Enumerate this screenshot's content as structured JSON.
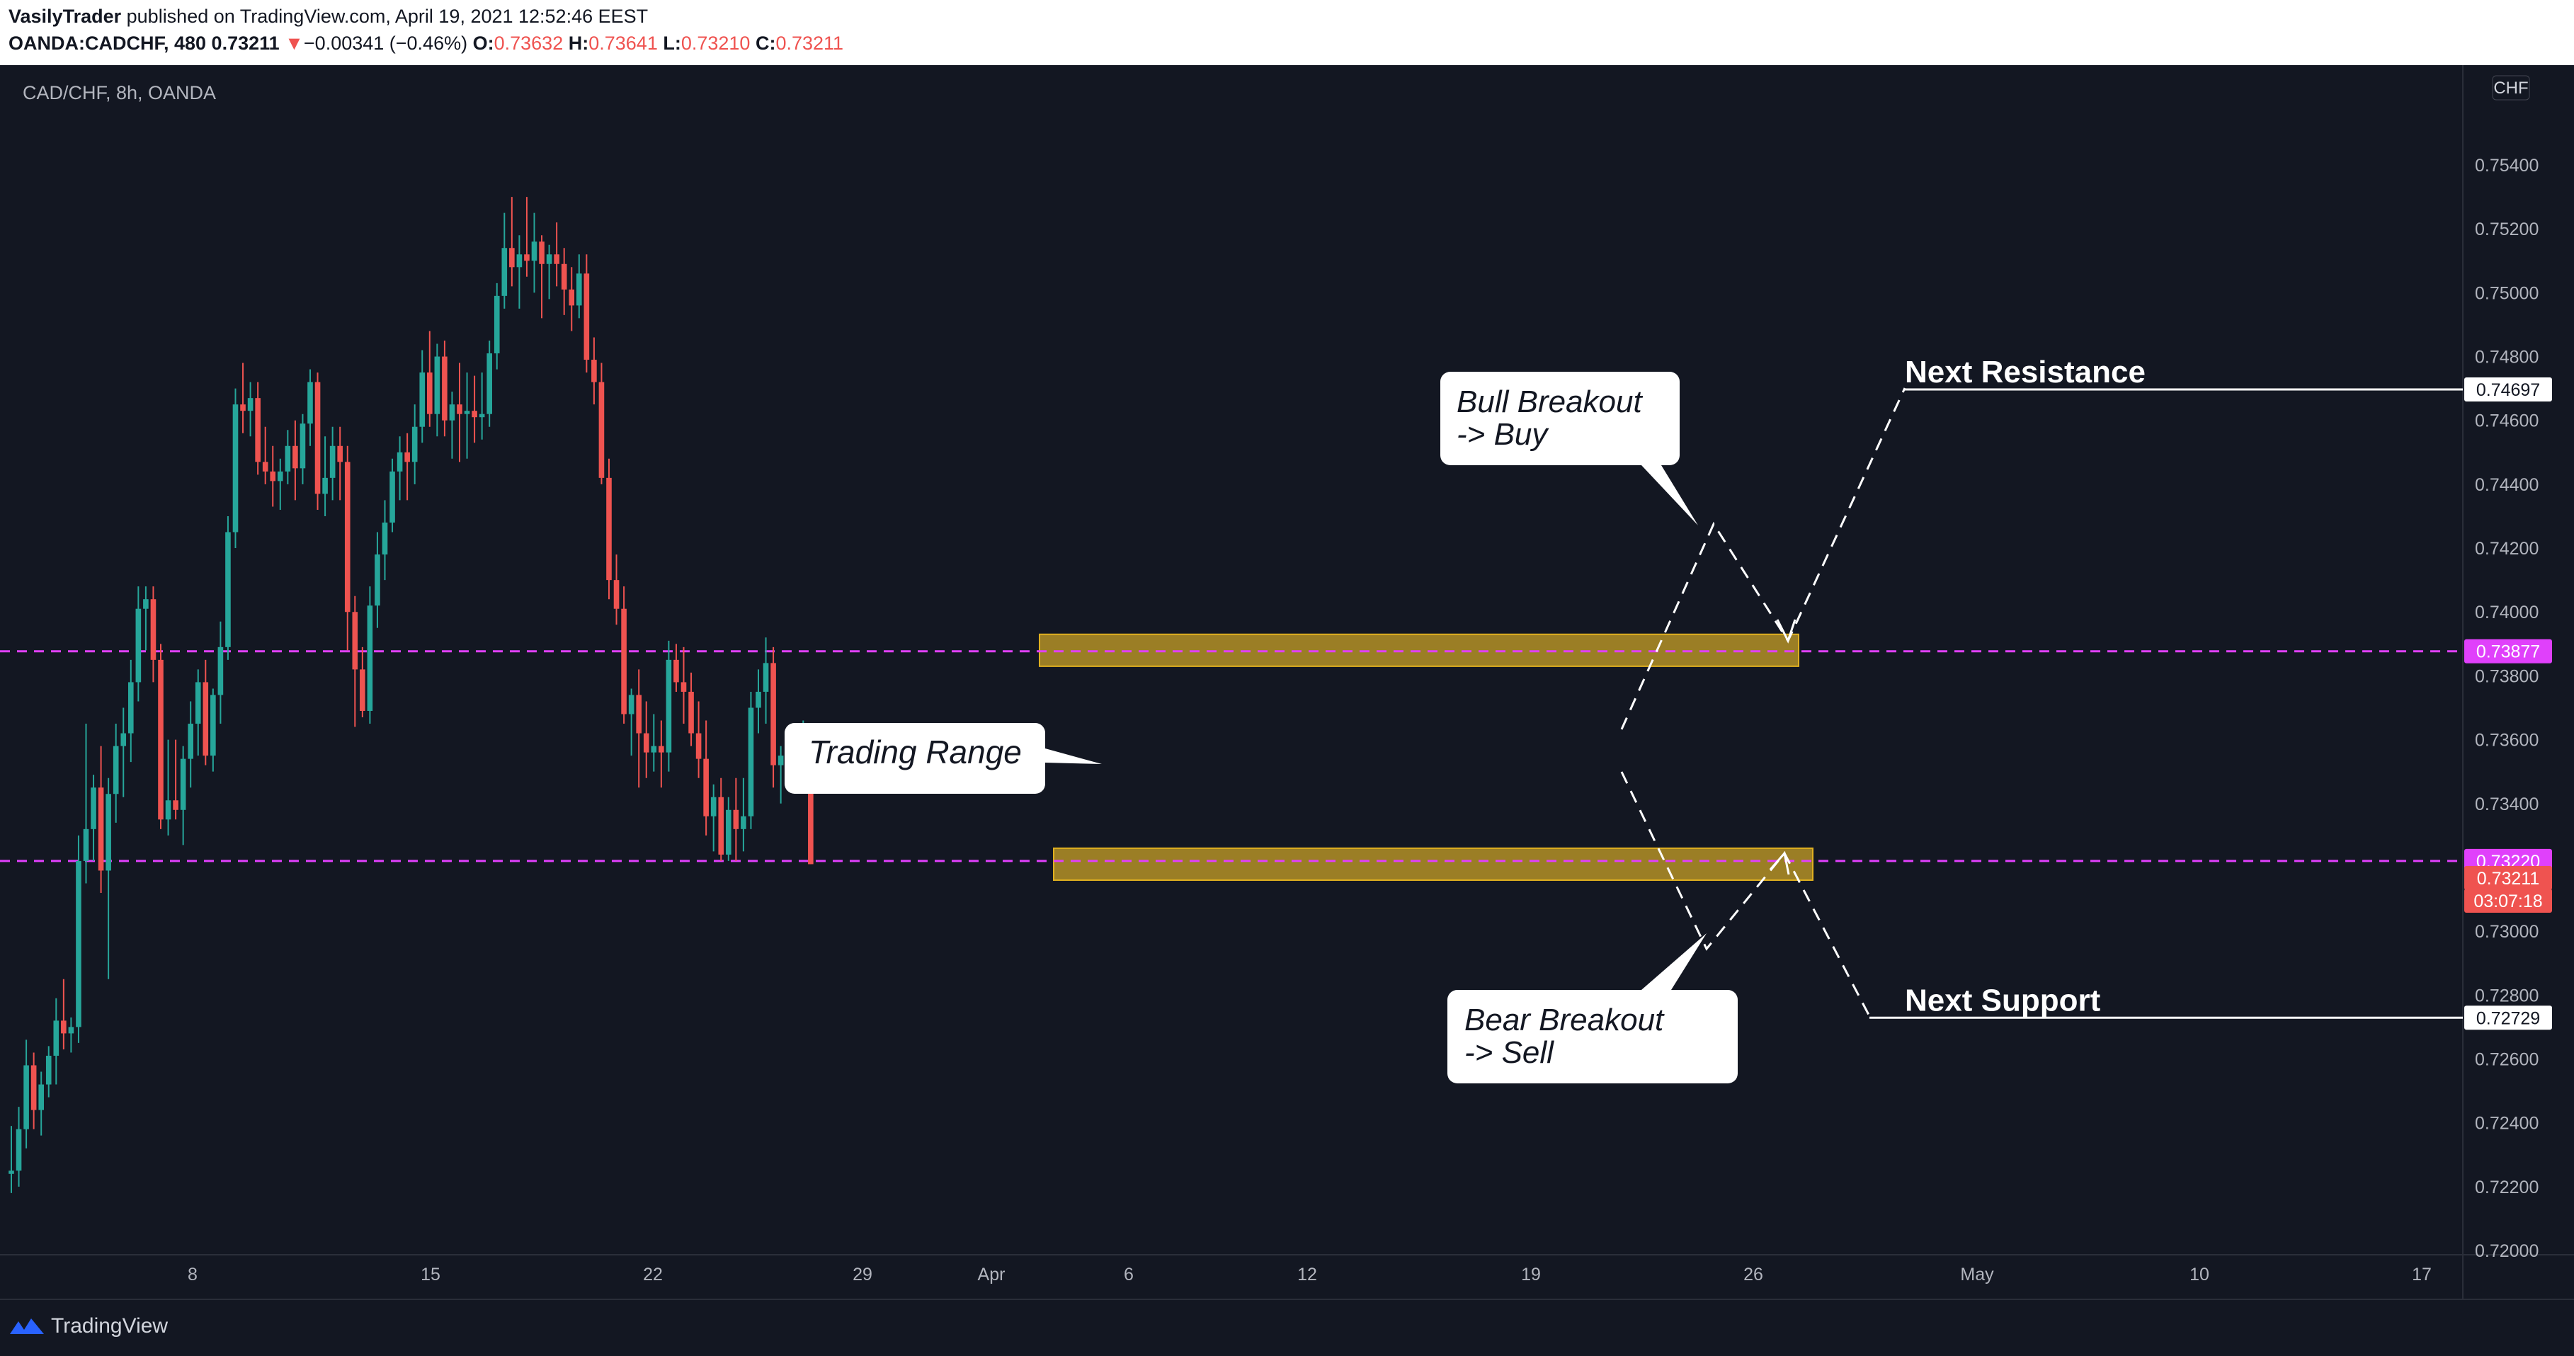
{
  "header": {
    "author": "VasilyTrader",
    "published": "published on TradingView.com, April 19, 2021 12:52:46 EEST",
    "symbol": "OANDA:CADCHF, 480",
    "last": "0.73211",
    "arrow": "▼",
    "change": "−0.00341 (−0.46%)",
    "o_label": "O:",
    "o_value": "0.73632",
    "h_label": "H:",
    "h_value": "0.73641",
    "l_label": "L:",
    "l_value": "0.73210",
    "c_label": "C:",
    "c_value": "0.73211"
  },
  "chart_title": "CAD/CHF, 8h, OANDA",
  "currency_badge": "CHF",
  "footer": {
    "brand": "TradingView"
  },
  "colors": {
    "background": "#131722",
    "up": "#26a69a",
    "down": "#ef5350",
    "level_line": "#e040fb",
    "zone": "#c9a227",
    "grid_text": "#b2b5be"
  },
  "chart_data": {
    "type": "candlestick",
    "title": "CAD/CHF, 8h, OANDA",
    "ylim": [
      0.72,
      0.7565
    ],
    "y_ticks": [
      "0.72000",
      "0.72200",
      "0.72400",
      "0.72600",
      "0.72800",
      "0.73000",
      "0.73400",
      "0.73600",
      "0.73800",
      "0.74000",
      "0.74200",
      "0.74400",
      "0.74600",
      "0.74800",
      "0.75000",
      "0.75200",
      "0.75400"
    ],
    "x_ticks": [
      "8",
      "15",
      "22",
      "29",
      "Apr",
      "6",
      "12",
      "19",
      "26",
      "May",
      "10",
      "17"
    ],
    "price_labels": [
      {
        "value": "0.74697",
        "style": "white"
      },
      {
        "value": "0.73877",
        "style": "magenta"
      },
      {
        "value": "0.73220",
        "style": "magenta"
      },
      {
        "value": "0.73211",
        "style": "red"
      },
      {
        "value": "03:07:18",
        "style": "red"
      },
      {
        "value": "0.72729",
        "style": "white"
      }
    ],
    "levels": [
      {
        "price": 0.73877,
        "name": "resistance-level"
      },
      {
        "price": 0.7322,
        "name": "support-level"
      }
    ],
    "zones": [
      {
        "from": 0.7383,
        "to": 0.7393,
        "name": "upper-range-zone"
      },
      {
        "from": 0.7316,
        "to": 0.7326,
        "name": "lower-range-zone"
      }
    ],
    "annotations": [
      {
        "text": "Next Resistance",
        "price": 0.74697
      },
      {
        "text": "Next Support",
        "price": 0.72729
      },
      {
        "text": "Trading Range"
      },
      {
        "text": "Bull Breakout\n-> Buy"
      },
      {
        "text": "Bear Breakout\n-> Sell"
      }
    ],
    "candles": [
      [
        0.7224,
        0.7239,
        0.7218,
        0.7225
      ],
      [
        0.7225,
        0.7245,
        0.722,
        0.7238
      ],
      [
        0.7238,
        0.7266,
        0.7232,
        0.7258
      ],
      [
        0.7258,
        0.7262,
        0.7238,
        0.7244
      ],
      [
        0.7244,
        0.7256,
        0.7236,
        0.7252
      ],
      [
        0.7252,
        0.7264,
        0.7248,
        0.7261
      ],
      [
        0.7261,
        0.7279,
        0.7252,
        0.7272
      ],
      [
        0.7272,
        0.7285,
        0.7263,
        0.7268
      ],
      [
        0.7268,
        0.7273,
        0.7262,
        0.727
      ],
      [
        0.727,
        0.733,
        0.7265,
        0.7322
      ],
      [
        0.7322,
        0.7365,
        0.7315,
        0.7332
      ],
      [
        0.7332,
        0.7349,
        0.7322,
        0.7345
      ],
      [
        0.7345,
        0.7358,
        0.7312,
        0.7319
      ],
      [
        0.7319,
        0.7348,
        0.7285,
        0.7343
      ],
      [
        0.7343,
        0.7365,
        0.7334,
        0.7358
      ],
      [
        0.7358,
        0.737,
        0.7342,
        0.7362
      ],
      [
        0.7362,
        0.7385,
        0.7353,
        0.7378
      ],
      [
        0.7378,
        0.7408,
        0.7372,
        0.7401
      ],
      [
        0.7401,
        0.7408,
        0.7388,
        0.7404
      ],
      [
        0.7404,
        0.7408,
        0.7378,
        0.7385
      ],
      [
        0.7385,
        0.739,
        0.7332,
        0.7335
      ],
      [
        0.7335,
        0.736,
        0.733,
        0.7341
      ],
      [
        0.7341,
        0.736,
        0.7335,
        0.7338
      ],
      [
        0.7338,
        0.7358,
        0.7327,
        0.7354
      ],
      [
        0.7354,
        0.7372,
        0.7345,
        0.7365
      ],
      [
        0.7365,
        0.7382,
        0.7355,
        0.7378
      ],
      [
        0.7378,
        0.7385,
        0.7352,
        0.7355
      ],
      [
        0.7355,
        0.7376,
        0.735,
        0.7374
      ],
      [
        0.7374,
        0.7397,
        0.7365,
        0.7389
      ],
      [
        0.7389,
        0.743,
        0.7385,
        0.7425
      ],
      [
        0.7425,
        0.747,
        0.742,
        0.7465
      ],
      [
        0.7465,
        0.7478,
        0.7456,
        0.7463
      ],
      [
        0.7463,
        0.7472,
        0.7455,
        0.7467
      ],
      [
        0.7467,
        0.7472,
        0.7443,
        0.7447
      ],
      [
        0.7447,
        0.7458,
        0.744,
        0.7444
      ],
      [
        0.7444,
        0.7452,
        0.7433,
        0.7441
      ],
      [
        0.7441,
        0.7448,
        0.7432,
        0.7444
      ],
      [
        0.7444,
        0.7457,
        0.744,
        0.7452
      ],
      [
        0.7452,
        0.746,
        0.7435,
        0.7445
      ],
      [
        0.7445,
        0.7462,
        0.744,
        0.7459
      ],
      [
        0.7459,
        0.7476,
        0.7452,
        0.7472
      ],
      [
        0.7472,
        0.7475,
        0.7432,
        0.7437
      ],
      [
        0.7437,
        0.7455,
        0.743,
        0.7442
      ],
      [
        0.7442,
        0.7458,
        0.7435,
        0.7452
      ],
      [
        0.7452,
        0.7458,
        0.7435,
        0.7447
      ],
      [
        0.7447,
        0.7452,
        0.7388,
        0.74
      ],
      [
        0.74,
        0.7405,
        0.7364,
        0.7382
      ],
      [
        0.7382,
        0.7389,
        0.7367,
        0.7369
      ],
      [
        0.7369,
        0.7408,
        0.7365,
        0.7402
      ],
      [
        0.7402,
        0.7425,
        0.7395,
        0.7418
      ],
      [
        0.7418,
        0.7435,
        0.741,
        0.7428
      ],
      [
        0.7428,
        0.7448,
        0.7425,
        0.7444
      ],
      [
        0.7444,
        0.7455,
        0.7435,
        0.745
      ],
      [
        0.745,
        0.7456,
        0.7435,
        0.7447
      ],
      [
        0.7447,
        0.7465,
        0.744,
        0.7458
      ],
      [
        0.7458,
        0.7482,
        0.7453,
        0.7475
      ],
      [
        0.7475,
        0.7488,
        0.7458,
        0.7462
      ],
      [
        0.7462,
        0.7484,
        0.7455,
        0.748
      ],
      [
        0.748,
        0.7485,
        0.7455,
        0.746
      ],
      [
        0.746,
        0.7469,
        0.7448,
        0.7465
      ],
      [
        0.7465,
        0.7478,
        0.7447,
        0.7462
      ],
      [
        0.7462,
        0.7475,
        0.7448,
        0.7463
      ],
      [
        0.7463,
        0.7474,
        0.7453,
        0.7461
      ],
      [
        0.7461,
        0.7475,
        0.7454,
        0.7462
      ],
      [
        0.7462,
        0.7485,
        0.7458,
        0.7481
      ],
      [
        0.7481,
        0.7503,
        0.7476,
        0.7499
      ],
      [
        0.7499,
        0.7525,
        0.7495,
        0.7514
      ],
      [
        0.7514,
        0.753,
        0.7502,
        0.7508
      ],
      [
        0.7508,
        0.7518,
        0.7495,
        0.7512
      ],
      [
        0.7512,
        0.753,
        0.7505,
        0.751
      ],
      [
        0.751,
        0.7525,
        0.75,
        0.7516
      ],
      [
        0.7516,
        0.7518,
        0.7492,
        0.7509
      ],
      [
        0.7509,
        0.7515,
        0.7498,
        0.7512
      ],
      [
        0.7512,
        0.7522,
        0.7502,
        0.7509
      ],
      [
        0.7509,
        0.7514,
        0.7493,
        0.7501
      ],
      [
        0.7501,
        0.7508,
        0.7488,
        0.7496
      ],
      [
        0.7496,
        0.7512,
        0.7492,
        0.7506
      ],
      [
        0.7506,
        0.7512,
        0.7475,
        0.7479
      ],
      [
        0.7479,
        0.7486,
        0.7465,
        0.7472
      ],
      [
        0.7472,
        0.7478,
        0.744,
        0.7442
      ],
      [
        0.7442,
        0.7448,
        0.7404,
        0.741
      ],
      [
        0.741,
        0.7418,
        0.7396,
        0.7401
      ],
      [
        0.7401,
        0.7408,
        0.7365,
        0.7368
      ],
      [
        0.7368,
        0.7376,
        0.7355,
        0.7374
      ],
      [
        0.7374,
        0.7382,
        0.7345,
        0.7362
      ],
      [
        0.7362,
        0.7372,
        0.7348,
        0.7356
      ],
      [
        0.7356,
        0.7368,
        0.735,
        0.7358
      ],
      [
        0.7358,
        0.7366,
        0.7345,
        0.7356
      ],
      [
        0.7356,
        0.7391,
        0.735,
        0.7385
      ],
      [
        0.7385,
        0.739,
        0.7375,
        0.7378
      ],
      [
        0.7378,
        0.7389,
        0.7365,
        0.7375
      ],
      [
        0.7375,
        0.7381,
        0.7358,
        0.7362
      ],
      [
        0.7362,
        0.7372,
        0.7348,
        0.7354
      ],
      [
        0.7354,
        0.7366,
        0.733,
        0.7336
      ],
      [
        0.7336,
        0.7346,
        0.7325,
        0.7342
      ],
      [
        0.7342,
        0.7348,
        0.7322,
        0.7324
      ],
      [
        0.7324,
        0.7342,
        0.7322,
        0.7338
      ],
      [
        0.7338,
        0.7348,
        0.7322,
        0.7332
      ],
      [
        0.7332,
        0.7348,
        0.7325,
        0.7336
      ],
      [
        0.7336,
        0.7375,
        0.7332,
        0.737
      ],
      [
        0.737,
        0.7382,
        0.7362,
        0.7375
      ],
      [
        0.7375,
        0.7392,
        0.7365,
        0.7384
      ],
      [
        0.7384,
        0.7389,
        0.7345,
        0.7352
      ],
      [
        0.7352,
        0.7358,
        0.734,
        0.7355
      ],
      [
        0.7355,
        0.7362,
        0.7345,
        0.7354
      ],
      [
        0.7354,
        0.7362,
        0.7348,
        0.7355
      ],
      [
        0.7355,
        0.7366,
        0.7346,
        0.7363
      ],
      [
        0.7363,
        0.7364,
        0.7321,
        0.7321
      ]
    ]
  }
}
